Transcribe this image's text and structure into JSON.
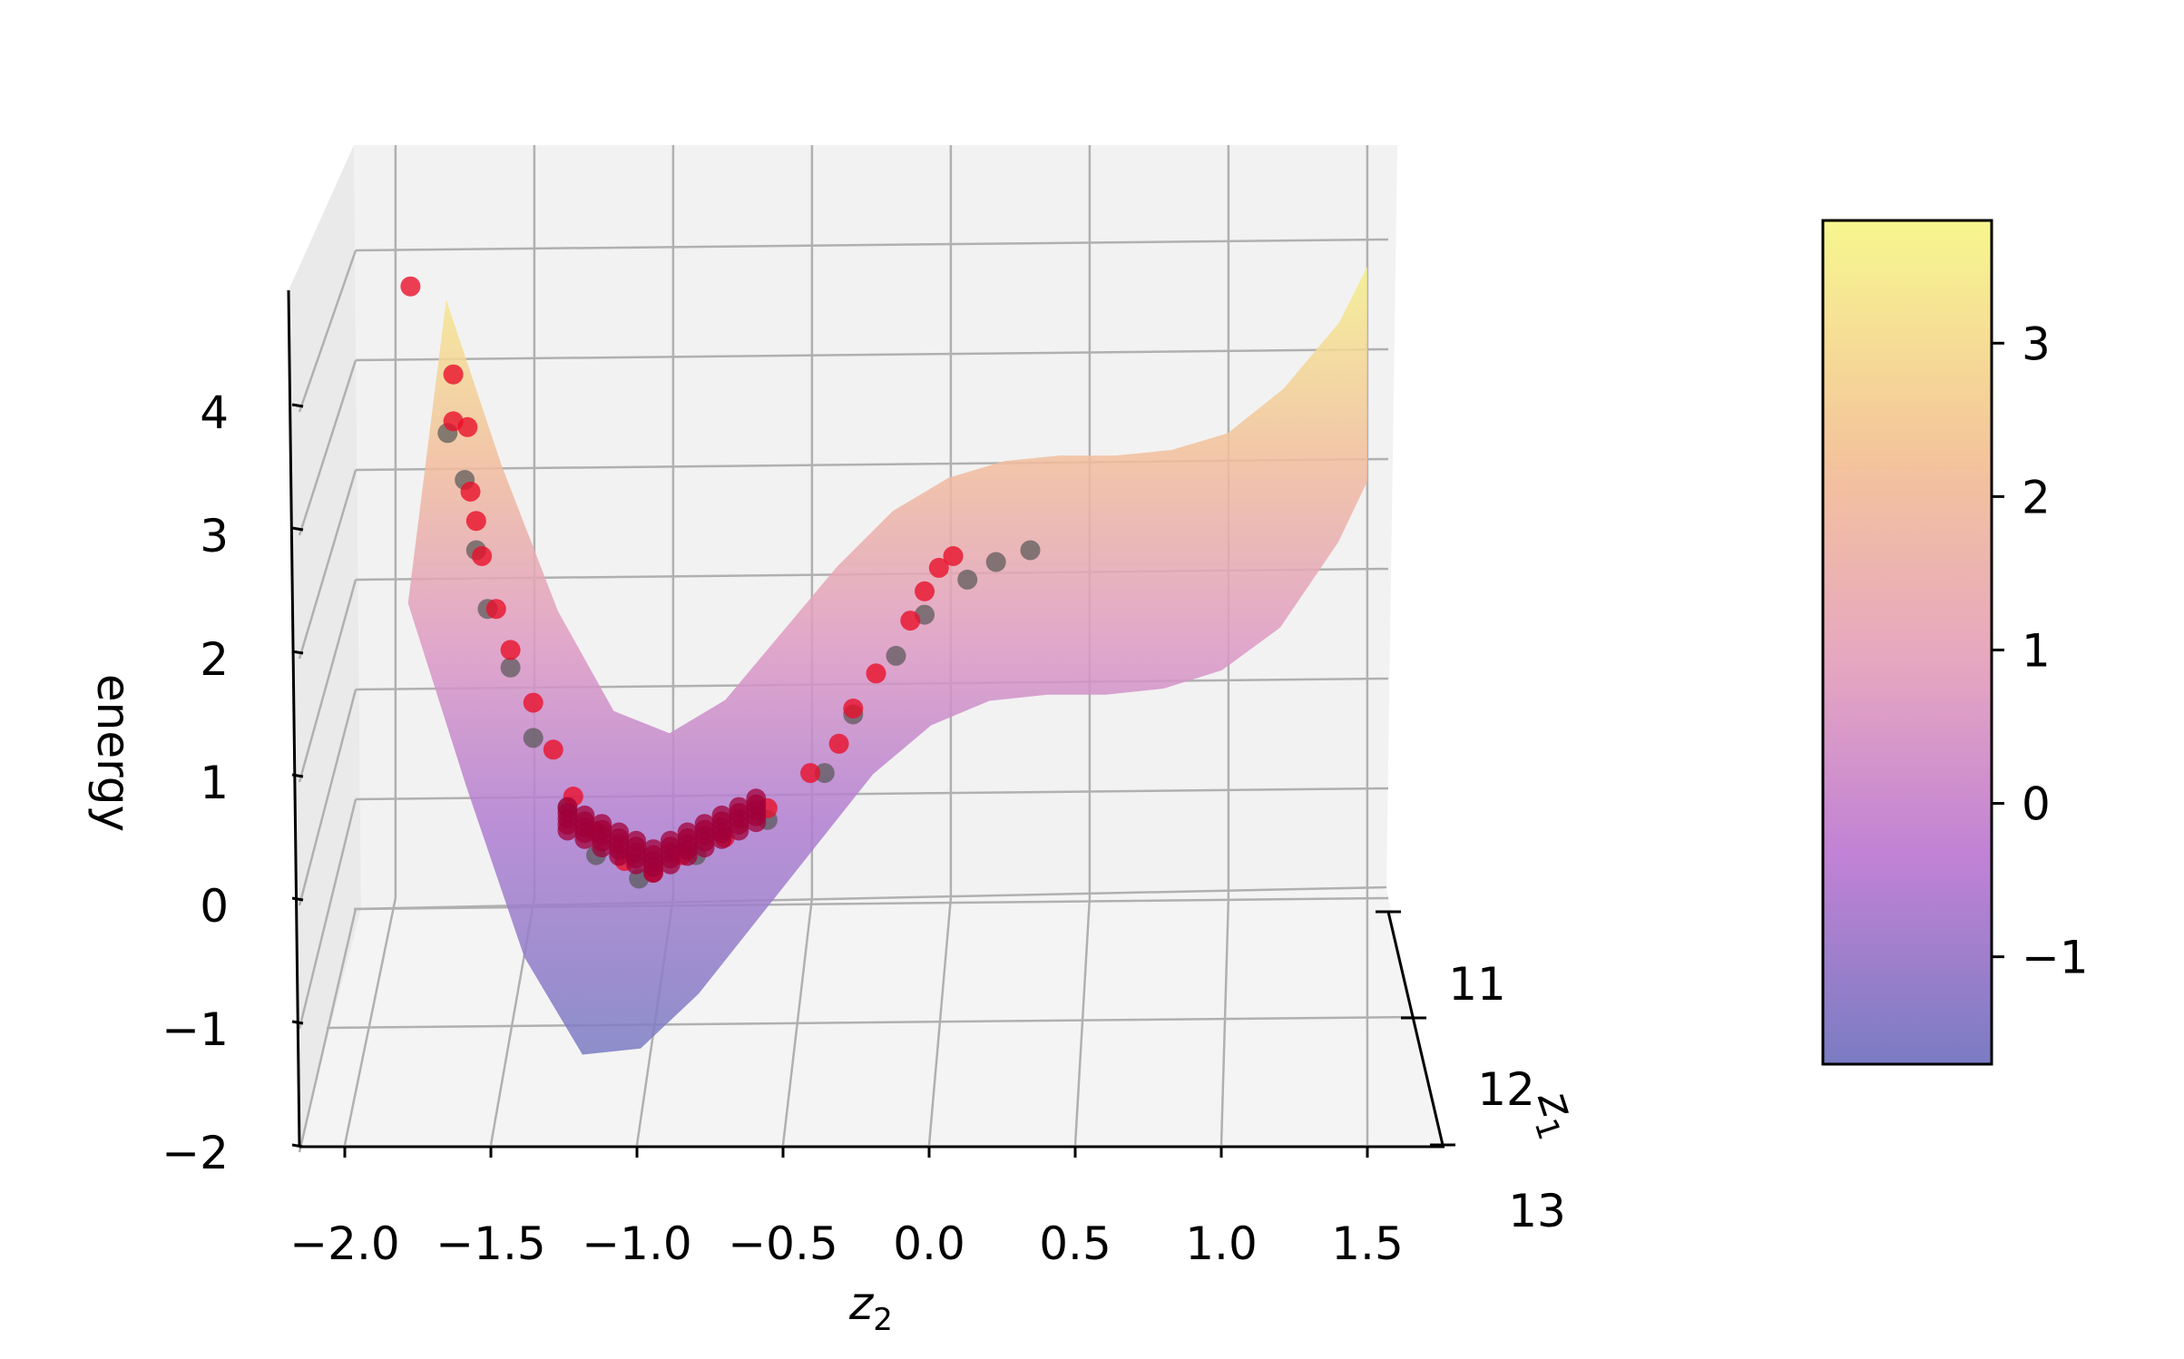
{
  "chart_data": {
    "type": "surface3d_scatter",
    "title": "",
    "zlabel": "energy",
    "ylabel_main": "z",
    "ylabel_sub": "2",
    "xlabel_main": "z",
    "xlabel_sub": "1",
    "y_ticks": [
      "−2.0",
      "−1.5",
      "−1.0",
      "−0.5",
      "0.0",
      "0.5",
      "1.0",
      "1.5"
    ],
    "y_tick_values": [
      -2.0,
      -1.5,
      -1.0,
      -0.5,
      0.0,
      0.5,
      1.0,
      1.5
    ],
    "z_ticks": [
      "−2",
      "−1",
      "0",
      "1",
      "2",
      "3",
      "4"
    ],
    "z_tick_values": [
      -2,
      -1,
      0,
      1,
      2,
      3,
      4
    ],
    "x_ticks": [
      "11",
      "12",
      "13"
    ],
    "ylim": [
      -2.15,
      1.6
    ],
    "zlim": [
      -2.0,
      4.8
    ],
    "grid": true,
    "surface": {
      "description_units": "energy as a function of z2",
      "z2": [
        -1.8,
        -1.6,
        -1.4,
        -1.2,
        -1.0,
        -0.8,
        -0.6,
        -0.4,
        -0.2,
        0.0,
        0.2,
        0.4,
        0.6,
        0.8,
        1.0,
        1.2,
        1.4,
        1.5
      ],
      "energy_near": [
        2.3,
        0.8,
        -0.6,
        -1.4,
        -1.35,
        -0.9,
        -0.3,
        0.3,
        0.9,
        1.3,
        1.5,
        1.55,
        1.55,
        1.6,
        1.75,
        2.1,
        2.8,
        3.3
      ],
      "energy_far": [
        3.7,
        2.2,
        0.9,
        0.0,
        -0.2,
        0.1,
        0.7,
        1.3,
        1.8,
        2.1,
        2.25,
        2.3,
        2.3,
        2.35,
        2.5,
        2.9,
        3.5,
        4.0
      ]
    },
    "scatter_series": [
      {
        "name": "",
        "color": "#555555",
        "points": [
          [
            -1.72,
            3.2
          ],
          [
            -1.66,
            2.8
          ],
          [
            -1.62,
            2.2
          ],
          [
            -1.58,
            1.7
          ],
          [
            -1.5,
            1.2
          ],
          [
            -1.42,
            0.6
          ],
          [
            -1.3,
            0.0
          ],
          [
            -1.2,
            -0.4
          ],
          [
            -1.05,
            -0.6
          ],
          [
            -0.85,
            -0.4
          ],
          [
            -0.6,
            -0.1
          ],
          [
            -0.4,
            0.3
          ],
          [
            -0.3,
            0.8
          ],
          [
            -0.15,
            1.3
          ],
          [
            -0.05,
            1.65
          ],
          [
            0.1,
            1.95
          ],
          [
            0.2,
            2.1
          ],
          [
            0.32,
            2.2
          ]
        ]
      },
      {
        "name": "",
        "color": "#e8102a",
        "points": [
          [
            -1.85,
            4.45
          ],
          [
            -1.7,
            3.7
          ],
          [
            -1.7,
            3.3
          ],
          [
            -1.65,
            3.25
          ],
          [
            -1.64,
            2.7
          ],
          [
            -1.62,
            2.45
          ],
          [
            -1.6,
            2.15
          ],
          [
            -1.55,
            1.7
          ],
          [
            -1.5,
            1.35
          ],
          [
            -1.42,
            0.9
          ],
          [
            -1.35,
            0.5
          ],
          [
            -1.28,
            0.1
          ],
          [
            -1.2,
            -0.2
          ],
          [
            -1.1,
            -0.45
          ],
          [
            -1.0,
            -0.55
          ],
          [
            -0.9,
            -0.4
          ],
          [
            -0.75,
            -0.25
          ],
          [
            -0.6,
            0.0
          ],
          [
            -0.45,
            0.3
          ],
          [
            -0.35,
            0.55
          ],
          [
            -0.3,
            0.85
          ],
          [
            -0.22,
            1.15
          ],
          [
            -0.1,
            1.6
          ],
          [
            -0.05,
            1.85
          ],
          [
            0.0,
            2.05
          ],
          [
            0.05,
            2.15
          ]
        ]
      }
    ],
    "colorbar": {
      "ticks": [
        "−1",
        "0",
        "1",
        "2",
        "3"
      ],
      "tick_values": [
        -1,
        0,
        1,
        2,
        3
      ],
      "range": [
        -1.7,
        3.8
      ],
      "colors": [
        "#7a7cc3",
        "#c282d5",
        "#e6a7c0",
        "#f4c49b",
        "#f7f78f"
      ]
    }
  }
}
